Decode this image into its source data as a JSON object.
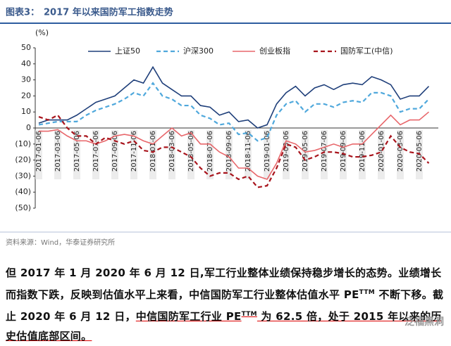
{
  "header": {
    "label": "图表3：",
    "title": "2017 年以来国防军工指数走势"
  },
  "chart_data": {
    "type": "line",
    "y_unit": "(%)",
    "categories": [
      "2017-01-06",
      null,
      "2017-03-06",
      null,
      "2017-05-06",
      null,
      "2017-07-06",
      null,
      "2017-09-06",
      null,
      "2017-11-06",
      null,
      "2018-01-06",
      null,
      "2018-03-06",
      null,
      "2018-05-06",
      null,
      "2018-07-06",
      null,
      "2018-09-06",
      null,
      "2018-11-06",
      null,
      "2019-01-06",
      null,
      "2019-03-06",
      null,
      "2019-05-06",
      null,
      "2019-07-06",
      null,
      "2019-09-06",
      null,
      "2019-11-06",
      null,
      "2020-01-06",
      null,
      "2020-03-06",
      null,
      "2020-05-06",
      null
    ],
    "series": [
      {
        "name": "上证50",
        "color": "#1f3f7a",
        "dash": false,
        "values": [
          3,
          5,
          5,
          5,
          8,
          12,
          16,
          18,
          20,
          25,
          30,
          28,
          38,
          28,
          24,
          20,
          20,
          14,
          13,
          8,
          10,
          4,
          5,
          0,
          2,
          15,
          22,
          26,
          20,
          25,
          27,
          24,
          27,
          28,
          27,
          32,
          30,
          27,
          18,
          20,
          20,
          26
        ]
      },
      {
        "name": "沪深300",
        "color": "#4fa8dc",
        "dash": true,
        "values": [
          2,
          3,
          4,
          4,
          4,
          8,
          11,
          13,
          15,
          18,
          22,
          20,
          28,
          20,
          18,
          14,
          14,
          8,
          6,
          2,
          3,
          -4,
          -3,
          -8,
          -6,
          8,
          15,
          17,
          10,
          15,
          15,
          13,
          16,
          17,
          16,
          22,
          22,
          20,
          10,
          12,
          12,
          18
        ]
      },
      {
        "name": "创业板指",
        "color": "#e8676b",
        "dash": false,
        "values": [
          -2,
          -2,
          -1,
          -5,
          -8,
          -8,
          -10,
          -8,
          -5,
          -4,
          -5,
          -8,
          -10,
          -5,
          0,
          -5,
          -3,
          -10,
          -10,
          -15,
          -18,
          -25,
          -25,
          -30,
          -32,
          -22,
          -8,
          -10,
          -15,
          -14,
          -12,
          -10,
          -12,
          -10,
          -10,
          -4,
          2,
          8,
          2,
          5,
          5,
          10
        ]
      },
      {
        "name": "国防军工(中信)",
        "color": "#a8141c",
        "dash": true,
        "values": [
          7,
          5,
          8,
          0,
          -5,
          -5,
          -10,
          -6,
          -8,
          -10,
          -8,
          -14,
          -15,
          -12,
          -12,
          -15,
          -18,
          -25,
          -30,
          -28,
          -28,
          -32,
          -30,
          -37,
          -36,
          -25,
          -10,
          -12,
          -20,
          -18,
          -15,
          -15,
          -16,
          -18,
          -18,
          -17,
          -15,
          -5,
          -12,
          -15,
          -16,
          -22
        ]
      }
    ],
    "ylim": [
      -50,
      50
    ],
    "yticks": [
      {
        "value": -50,
        "label": "(50)"
      },
      {
        "value": -40,
        "label": "(40)"
      },
      {
        "value": -30,
        "label": "(30)"
      },
      {
        "value": -20,
        "label": "(20)"
      },
      {
        "value": -10,
        "label": "(10)"
      },
      0,
      10,
      20,
      30,
      40,
      50
    ],
    "grid": false,
    "legend": "top"
  },
  "source": "资料来源：Wind，华泰证券研究所",
  "paragraph": [
    "但 2017 年 1 月 2020 年 6 月 12 日,军工行业整体业绩保持稳步增长的态势。业绩增长而指数下跌，反映到估值水平上来看，中信国防军工行业整体估值水平 PE",
    "TTM",
    " 不断下移。截止 2020 年 6 月 12 日，",
    "中信国防军工行业 PE",
    "TTM",
    " 为 62.5 倍，处于 2015 年以来的历史估值底部区间。"
  ],
  "watermark": "泛福黑洞"
}
